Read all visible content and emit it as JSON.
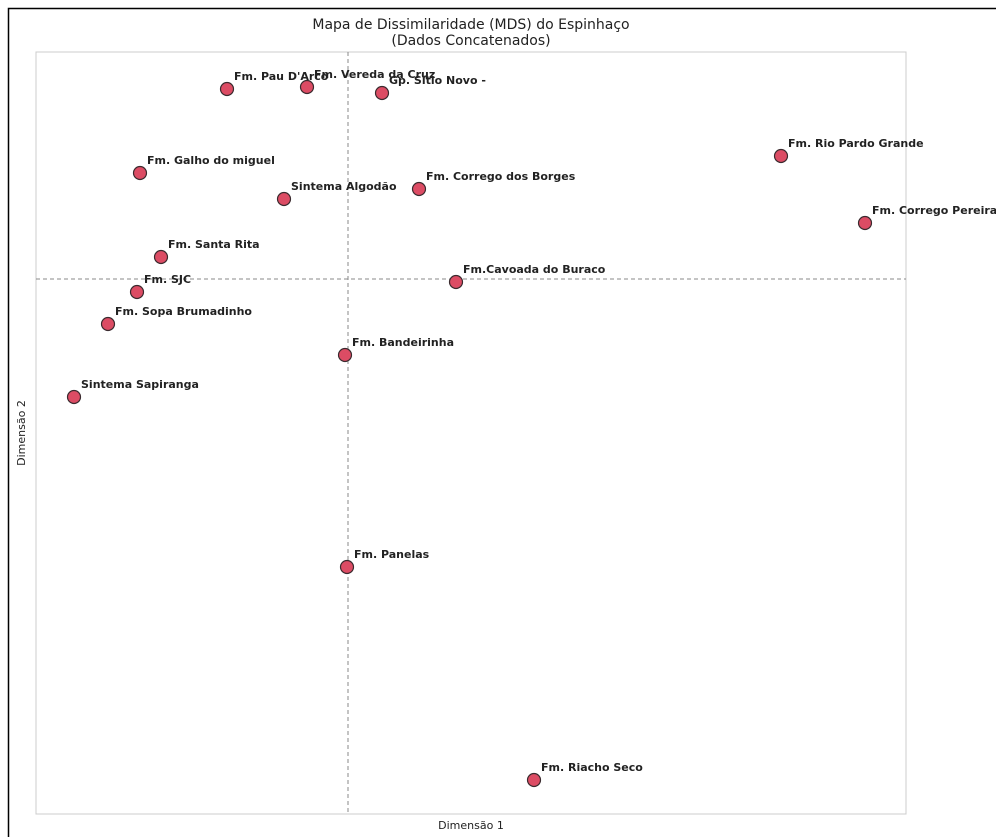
{
  "chart_data": {
    "type": "scatter",
    "title": "Mapa de Dissimilaridade (MDS) do Espinhaço",
    "subtitle": "(Dados Concatenados)",
    "xlabel": "Dimensão 1",
    "ylabel": "Dimensão 2",
    "labels": [
      "Fm. Pau D'Arco",
      "Fm. Vereda da Cruz",
      "Gp. Sítio Novo -",
      "Fm. Rio Pardo Grande",
      "Fm. Galho do miguel",
      "Fm. Corrego dos Borges",
      "Sintema Algodão",
      "Fm. Corrego Pereira",
      "Fm. Santa Rita",
      "Fm.Cavoada do Buraco",
      "Fm. SJC",
      "Fm. Sopa Brumadinho",
      "Fm. Bandeirinha",
      "Sintema Sapiranga",
      "Fm. Panelas",
      "Fm. Riacho Seco"
    ],
    "x": [
      -0.242,
      -0.082,
      0.068,
      0.866,
      -0.416,
      0.142,
      -0.128,
      1.034,
      -0.374,
      0.216,
      -0.422,
      -0.48,
      -0.006,
      -0.548,
      -0.002,
      0.372
    ],
    "y": [
      0.38,
      0.384,
      0.372,
      0.246,
      0.212,
      0.18,
      0.16,
      0.112,
      0.044,
      -0.006,
      -0.026,
      -0.09,
      -0.152,
      -0.236,
      -0.576,
      -1.002
    ],
    "xlim": [
      -0.624,
      1.116
    ],
    "ylim": [
      -1.07,
      0.454
    ],
    "xline": 0,
    "yline": 0,
    "color": "#dc4c64",
    "edgecolor": "#3a2a2e"
  }
}
